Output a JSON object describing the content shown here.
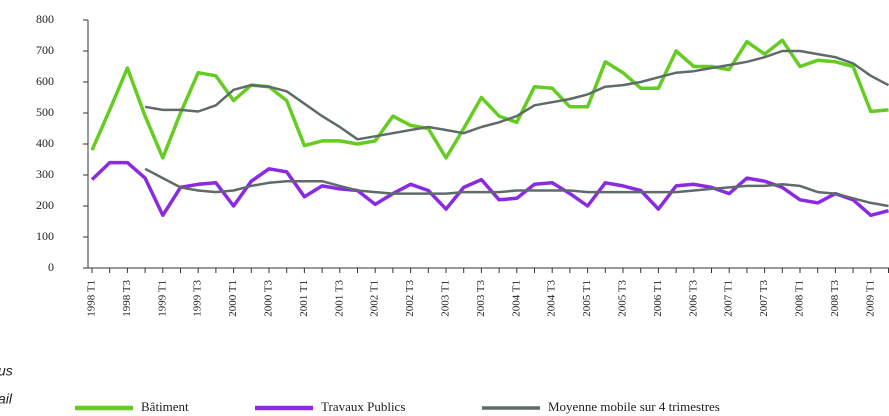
{
  "chart_data": {
    "type": "line",
    "categories": [
      "1998 T1",
      null,
      "1998 T3",
      null,
      "1999 T1",
      null,
      "1999 T3",
      null,
      "2000 T1",
      null,
      "2000 T3",
      null,
      "2001 T1",
      null,
      "2001 T3",
      null,
      "2002 T1",
      null,
      "2002 T3",
      null,
      "2003 T1",
      null,
      "2003 T3",
      null,
      "2004 T1",
      null,
      "2004 T3",
      null,
      "2005 T1",
      null,
      "2005 T3",
      null,
      "2006 T1",
      null,
      "2006 T3",
      null,
      "2007 T1",
      null,
      "2007 T3",
      null,
      "2008 T1",
      null,
      "2008 T3",
      null,
      "2009 T1",
      null
    ],
    "series": [
      {
        "name": "Bâtiment",
        "color": "#66cc22",
        "width": 3.5,
        "values": [
          380,
          510,
          645,
          490,
          355,
          500,
          630,
          620,
          540,
          590,
          585,
          540,
          395,
          410,
          410,
          400,
          410,
          490,
          460,
          450,
          355,
          450,
          550,
          490,
          470,
          585,
          580,
          520,
          520,
          665,
          630,
          580,
          580,
          700,
          650,
          650,
          640,
          730,
          690,
          735,
          650,
          670,
          665,
          650,
          505,
          510
        ]
      },
      {
        "name": "Travaux Publics",
        "color": "#8a2be2",
        "width": 3.5,
        "values": [
          285,
          340,
          340,
          290,
          170,
          260,
          270,
          275,
          200,
          280,
          320,
          310,
          230,
          265,
          255,
          250,
          205,
          240,
          270,
          250,
          190,
          260,
          285,
          220,
          225,
          270,
          275,
          240,
          200,
          275,
          265,
          250,
          190,
          265,
          270,
          260,
          240,
          290,
          280,
          260,
          220,
          210,
          240,
          220,
          170,
          185
        ]
      },
      {
        "name": "Moyenne mobile sur 4 trimestres",
        "color": "#5f6b6b",
        "width": 2.5,
        "values": [
          null,
          null,
          null,
          520,
          510,
          510,
          505,
          525,
          575,
          590,
          585,
          570,
          530,
          490,
          455,
          415,
          425,
          435,
          445,
          455,
          445,
          435,
          455,
          470,
          490,
          525,
          535,
          545,
          560,
          585,
          590,
          600,
          615,
          630,
          635,
          645,
          655,
          665,
          680,
          700,
          700,
          690,
          680,
          660,
          620,
          590
        ]
      },
      {
        "color": "#5f6b6b",
        "width": 2.5,
        "values": [
          null,
          null,
          null,
          320,
          290,
          260,
          250,
          245,
          250,
          265,
          275,
          280,
          280,
          280,
          265,
          250,
          245,
          240,
          240,
          240,
          240,
          245,
          245,
          245,
          250,
          250,
          250,
          250,
          245,
          245,
          245,
          245,
          245,
          245,
          250,
          255,
          260,
          265,
          265,
          270,
          265,
          245,
          240,
          225,
          210,
          200
        ]
      }
    ],
    "ylim": [
      0,
      800
    ],
    "yticks": [
      0,
      100,
      200,
      300,
      400,
      500,
      600,
      700,
      800
    ],
    "annotations": [
      "us",
      "ail"
    ]
  }
}
